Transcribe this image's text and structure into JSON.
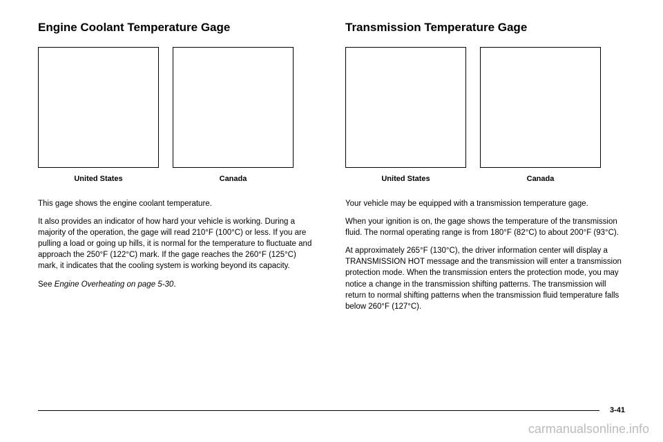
{
  "left": {
    "title": "Engine Coolant Temperature Gage",
    "caption_us": "United States",
    "caption_ca": "Canada",
    "p1": "This gage shows the engine coolant temperature.",
    "p2": "It also provides an indicator of how hard your vehicle is working. During a majority of the operation, the gage will read 210°F (100°C) or less. If you are pulling a load or going up hills, it is normal for the temperature to fluctuate and approach the 250°F (122°C) mark. If the gage reaches the 260°F (125°C) mark, it indicates that the cooling system is working beyond its capacity.",
    "p3_pre": "See ",
    "p3_italic": "Engine Overheating on page 5-30",
    "p3_post": "."
  },
  "right": {
    "title": "Transmission Temperature Gage",
    "caption_us": "United States",
    "caption_ca": "Canada",
    "p1": "Your vehicle may be equipped with a transmission temperature gage.",
    "p2": "When your ignition is on, the gage shows the temperature of the transmission fluid. The normal operating range is from 180°F (82°C) to about 200°F (93°C).",
    "p3": "At approximately 265°F (130°C), the driver information center will display a TRANSMISSION HOT message and the transmission will enter a transmission protection mode. When the transmission enters the protection mode, you may notice a change in the transmission shifting patterns. The transmission will return to normal shifting patterns when the transmission fluid temperature falls below 260°F (127°C)."
  },
  "page_num": "3-41",
  "watermark": "carmanualsonline.info"
}
